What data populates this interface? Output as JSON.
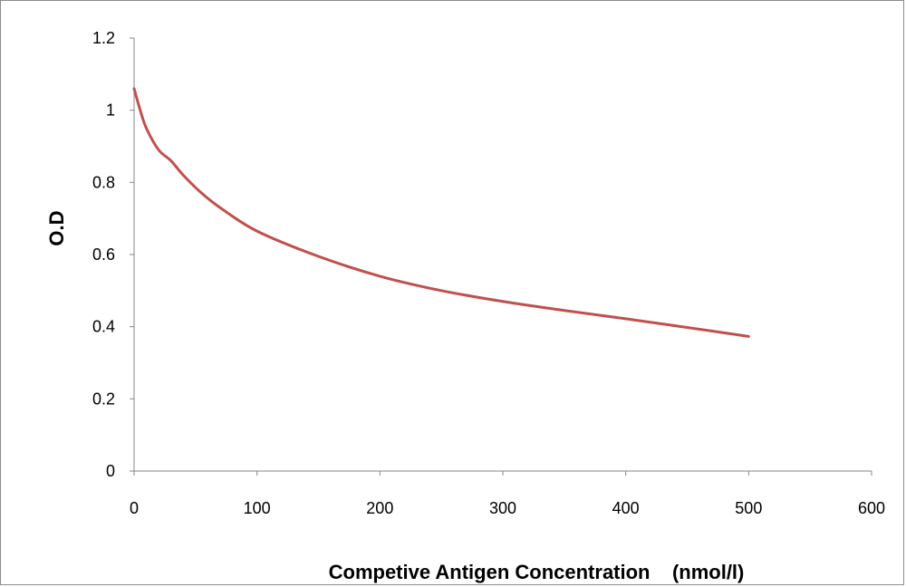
{
  "chart_data": {
    "type": "line",
    "title": "",
    "xlabel": "Competive Antigen Concentration    (nmol/l)",
    "ylabel": "O.D",
    "xlim": [
      0,
      600
    ],
    "ylim": [
      0,
      1.2
    ],
    "x_ticks": [
      "0",
      "100",
      "200",
      "300",
      "400",
      "500",
      "600"
    ],
    "y_ticks": [
      "0",
      "0.2",
      "0.4",
      "0.6",
      "0.8",
      "1",
      "1.2"
    ],
    "grid": false,
    "legend": "none",
    "series": [
      {
        "color": "#c0504d",
        "x": [
          0,
          5,
          10,
          20,
          30,
          40,
          55,
          70,
          100,
          150,
          200,
          250,
          300,
          350,
          400,
          450,
          500
        ],
        "y": [
          1.06,
          1.0,
          0.95,
          0.89,
          0.86,
          0.82,
          0.77,
          0.73,
          0.665,
          0.595,
          0.54,
          0.5,
          0.47,
          0.445,
          0.422,
          0.398,
          0.373
        ]
      }
    ]
  }
}
